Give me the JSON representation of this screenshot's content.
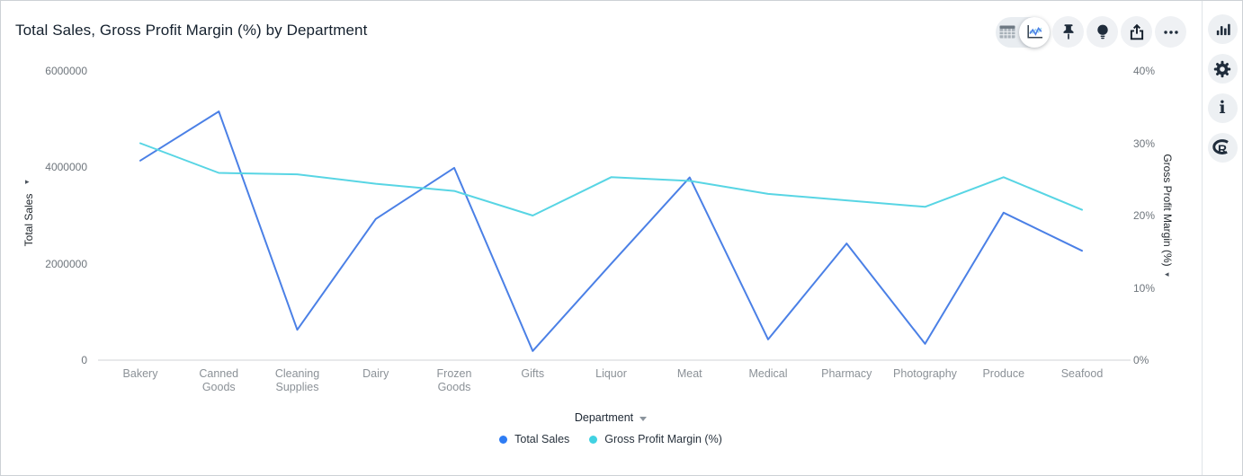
{
  "header": {
    "title": "Total Sales, Gross Profit Margin (%) by Department"
  },
  "toolbar": {
    "view_toggle": {
      "options": [
        {
          "icon": "table-view-icon",
          "selected": false
        },
        {
          "icon": "line-chart-view-icon",
          "selected": true
        }
      ]
    },
    "buttons": [
      {
        "icon": "pin-icon"
      },
      {
        "icon": "lightbulb-icon"
      },
      {
        "icon": "export-icon"
      },
      {
        "icon": "ellipsis-icon"
      }
    ]
  },
  "sidebar": {
    "buttons": [
      {
        "icon": "bar-chart-icon"
      },
      {
        "icon": "gear-icon"
      },
      {
        "icon": "info-icon",
        "glyph": "i"
      },
      {
        "icon": "r-logo-icon",
        "glyph": "R"
      }
    ]
  },
  "chart_data": {
    "type": "line",
    "title": "Total Sales, Gross Profit Margin (%) by Department",
    "x_label": "Department",
    "categories": [
      "Bakery",
      "Canned Goods",
      "Cleaning Supplies",
      "Dairy",
      "Frozen Goods",
      "Gifts",
      "Liquor",
      "Meat",
      "Medical",
      "Pharmacy",
      "Photography",
      "Produce",
      "Seafood"
    ],
    "series": [
      {
        "name": "Total Sales",
        "axis": "left",
        "color": "#2E7CF4",
        "line_color": "#4B80E6",
        "values": [
          4140000,
          5160000,
          630000,
          2930000,
          3990000,
          190000,
          2000000,
          3790000,
          430000,
          2420000,
          340000,
          3060000,
          2270000
        ]
      },
      {
        "name": "Gross Profit Margin (%)",
        "axis": "right",
        "color": "#41D2E2",
        "line_color": "#58D5E4",
        "values": [
          30,
          25.9,
          25.7,
          24.4,
          23.4,
          20,
          25.3,
          24.8,
          23,
          22.1,
          21.2,
          25.3,
          20.8
        ]
      }
    ],
    "left_axis": {
      "title": "Total Sales",
      "range": [
        0,
        6000000
      ],
      "tick_values": [
        0,
        2000000,
        4000000,
        6000000
      ],
      "tick_labels": [
        "0",
        "2000000",
        "4000000",
        "6000000"
      ]
    },
    "right_axis": {
      "title": "Gross Profit Margin (%)",
      "range": [
        0,
        40
      ],
      "tick_values": [
        0,
        10,
        20,
        30,
        40
      ],
      "tick_labels": [
        "0%",
        "10%",
        "20%",
        "30%",
        "40%"
      ]
    },
    "legend_position": "bottom",
    "grid": false
  }
}
